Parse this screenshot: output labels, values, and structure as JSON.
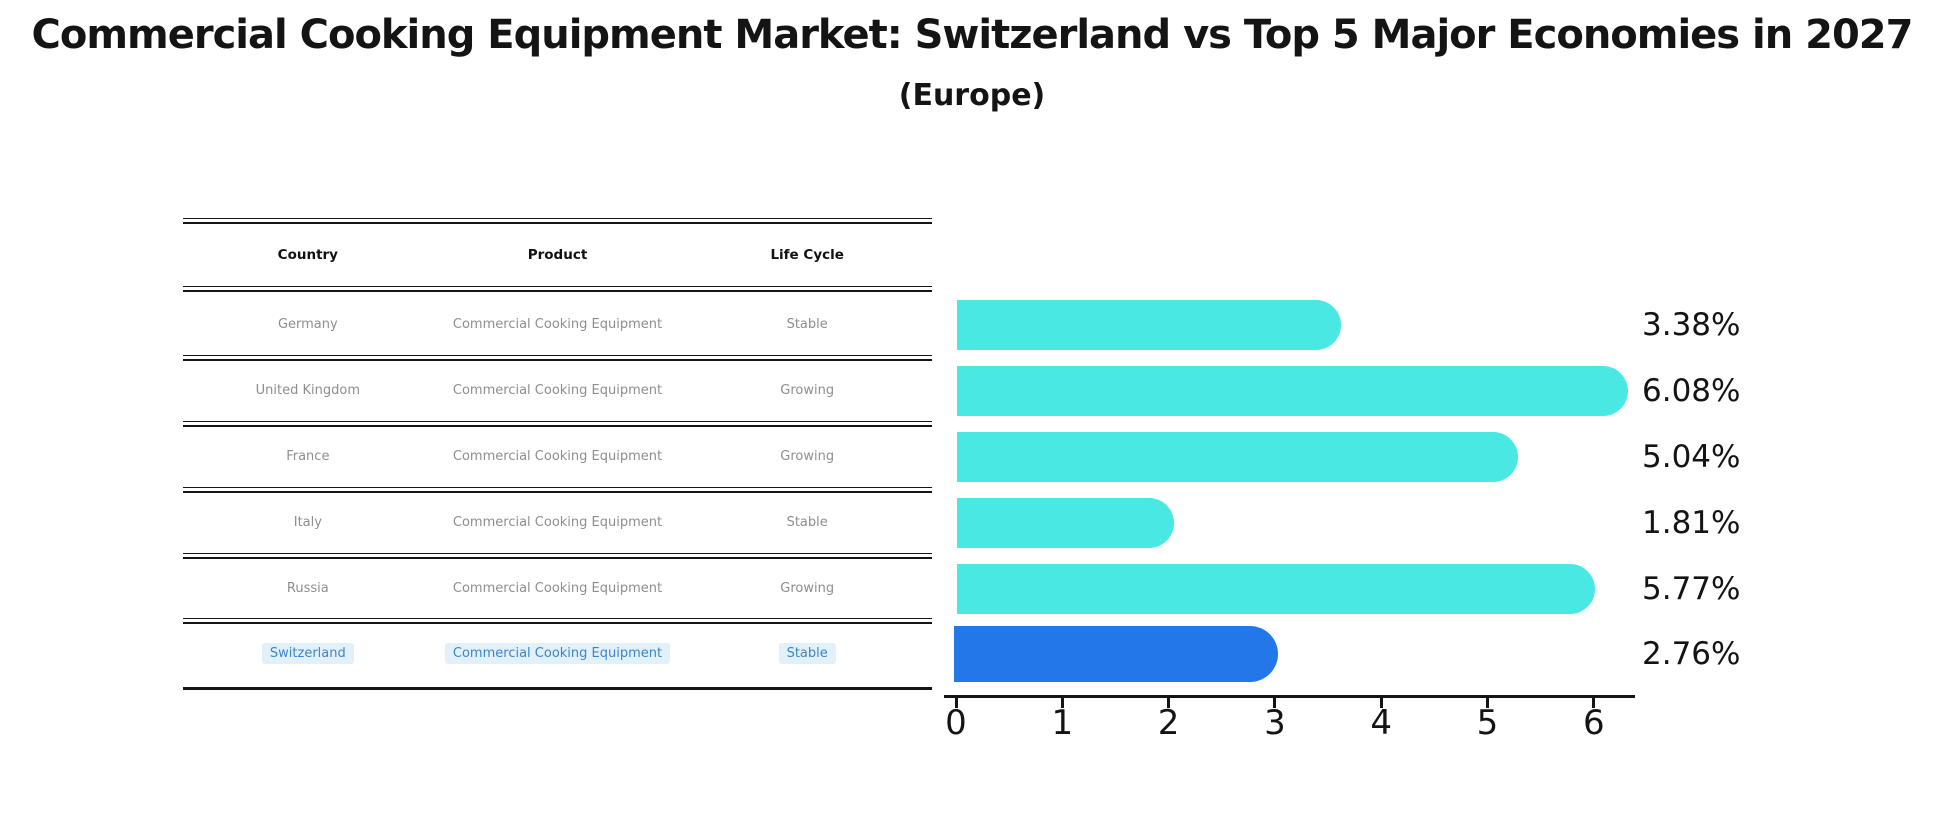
{
  "title": "Commercial Cooking Equipment Market: Switzerland vs Top 5 Major Economies in 2027",
  "subtitle": "(Europe)",
  "table": {
    "headers": [
      "Country",
      "Product",
      "Life Cycle"
    ],
    "rows": [
      {
        "country": "Germany",
        "product": "Commercial Cooking Equipment",
        "life_cycle": "Stable",
        "highlighted": false
      },
      {
        "country": "United Kingdom",
        "product": "Commercial Cooking Equipment",
        "life_cycle": "Growing",
        "highlighted": false
      },
      {
        "country": "France",
        "product": "Commercial Cooking Equipment",
        "life_cycle": "Growing",
        "highlighted": false
      },
      {
        "country": "Italy",
        "product": "Commercial Cooking Equipment",
        "life_cycle": "Stable",
        "highlighted": false
      },
      {
        "country": "Russia",
        "product": "Commercial Cooking Equipment",
        "life_cycle": "Growing",
        "highlighted": false
      },
      {
        "country": "Switzerland",
        "product": "Commercial Cooking Equipment",
        "life_cycle": "Stable",
        "highlighted": true
      }
    ]
  },
  "chart_data": {
    "type": "bar",
    "orientation": "horizontal",
    "title": "Commercial Cooking Equipment Market: Switzerland vs Top 5 Major Economies in 2027 (Europe)",
    "categories": [
      "Germany",
      "United Kingdom",
      "France",
      "Italy",
      "Russia",
      "Switzerland"
    ],
    "values": [
      3.38,
      6.08,
      5.04,
      1.81,
      5.77,
      2.76
    ],
    "value_labels": [
      "3.38%",
      "6.08%",
      "5.04%",
      "1.81%",
      "5.77%",
      "2.76%"
    ],
    "xlabel": "",
    "ylabel": "",
    "xlim": [
      0,
      6.4
    ],
    "xticks": [
      0,
      1,
      2,
      3,
      4,
      5,
      6
    ],
    "grid": false,
    "legend": false,
    "highlight_index": 5,
    "bar_color": "#49E8E3",
    "highlight_color": "#2377E8"
  },
  "colors": {
    "text": "#141414",
    "muted_text": "#8E8E8E",
    "swiss_text": "#3B86C9",
    "swiss_highlight_bg": "#E2F0FA",
    "bar": "#49E8E3",
    "swiss_bar": "#2377E8"
  }
}
